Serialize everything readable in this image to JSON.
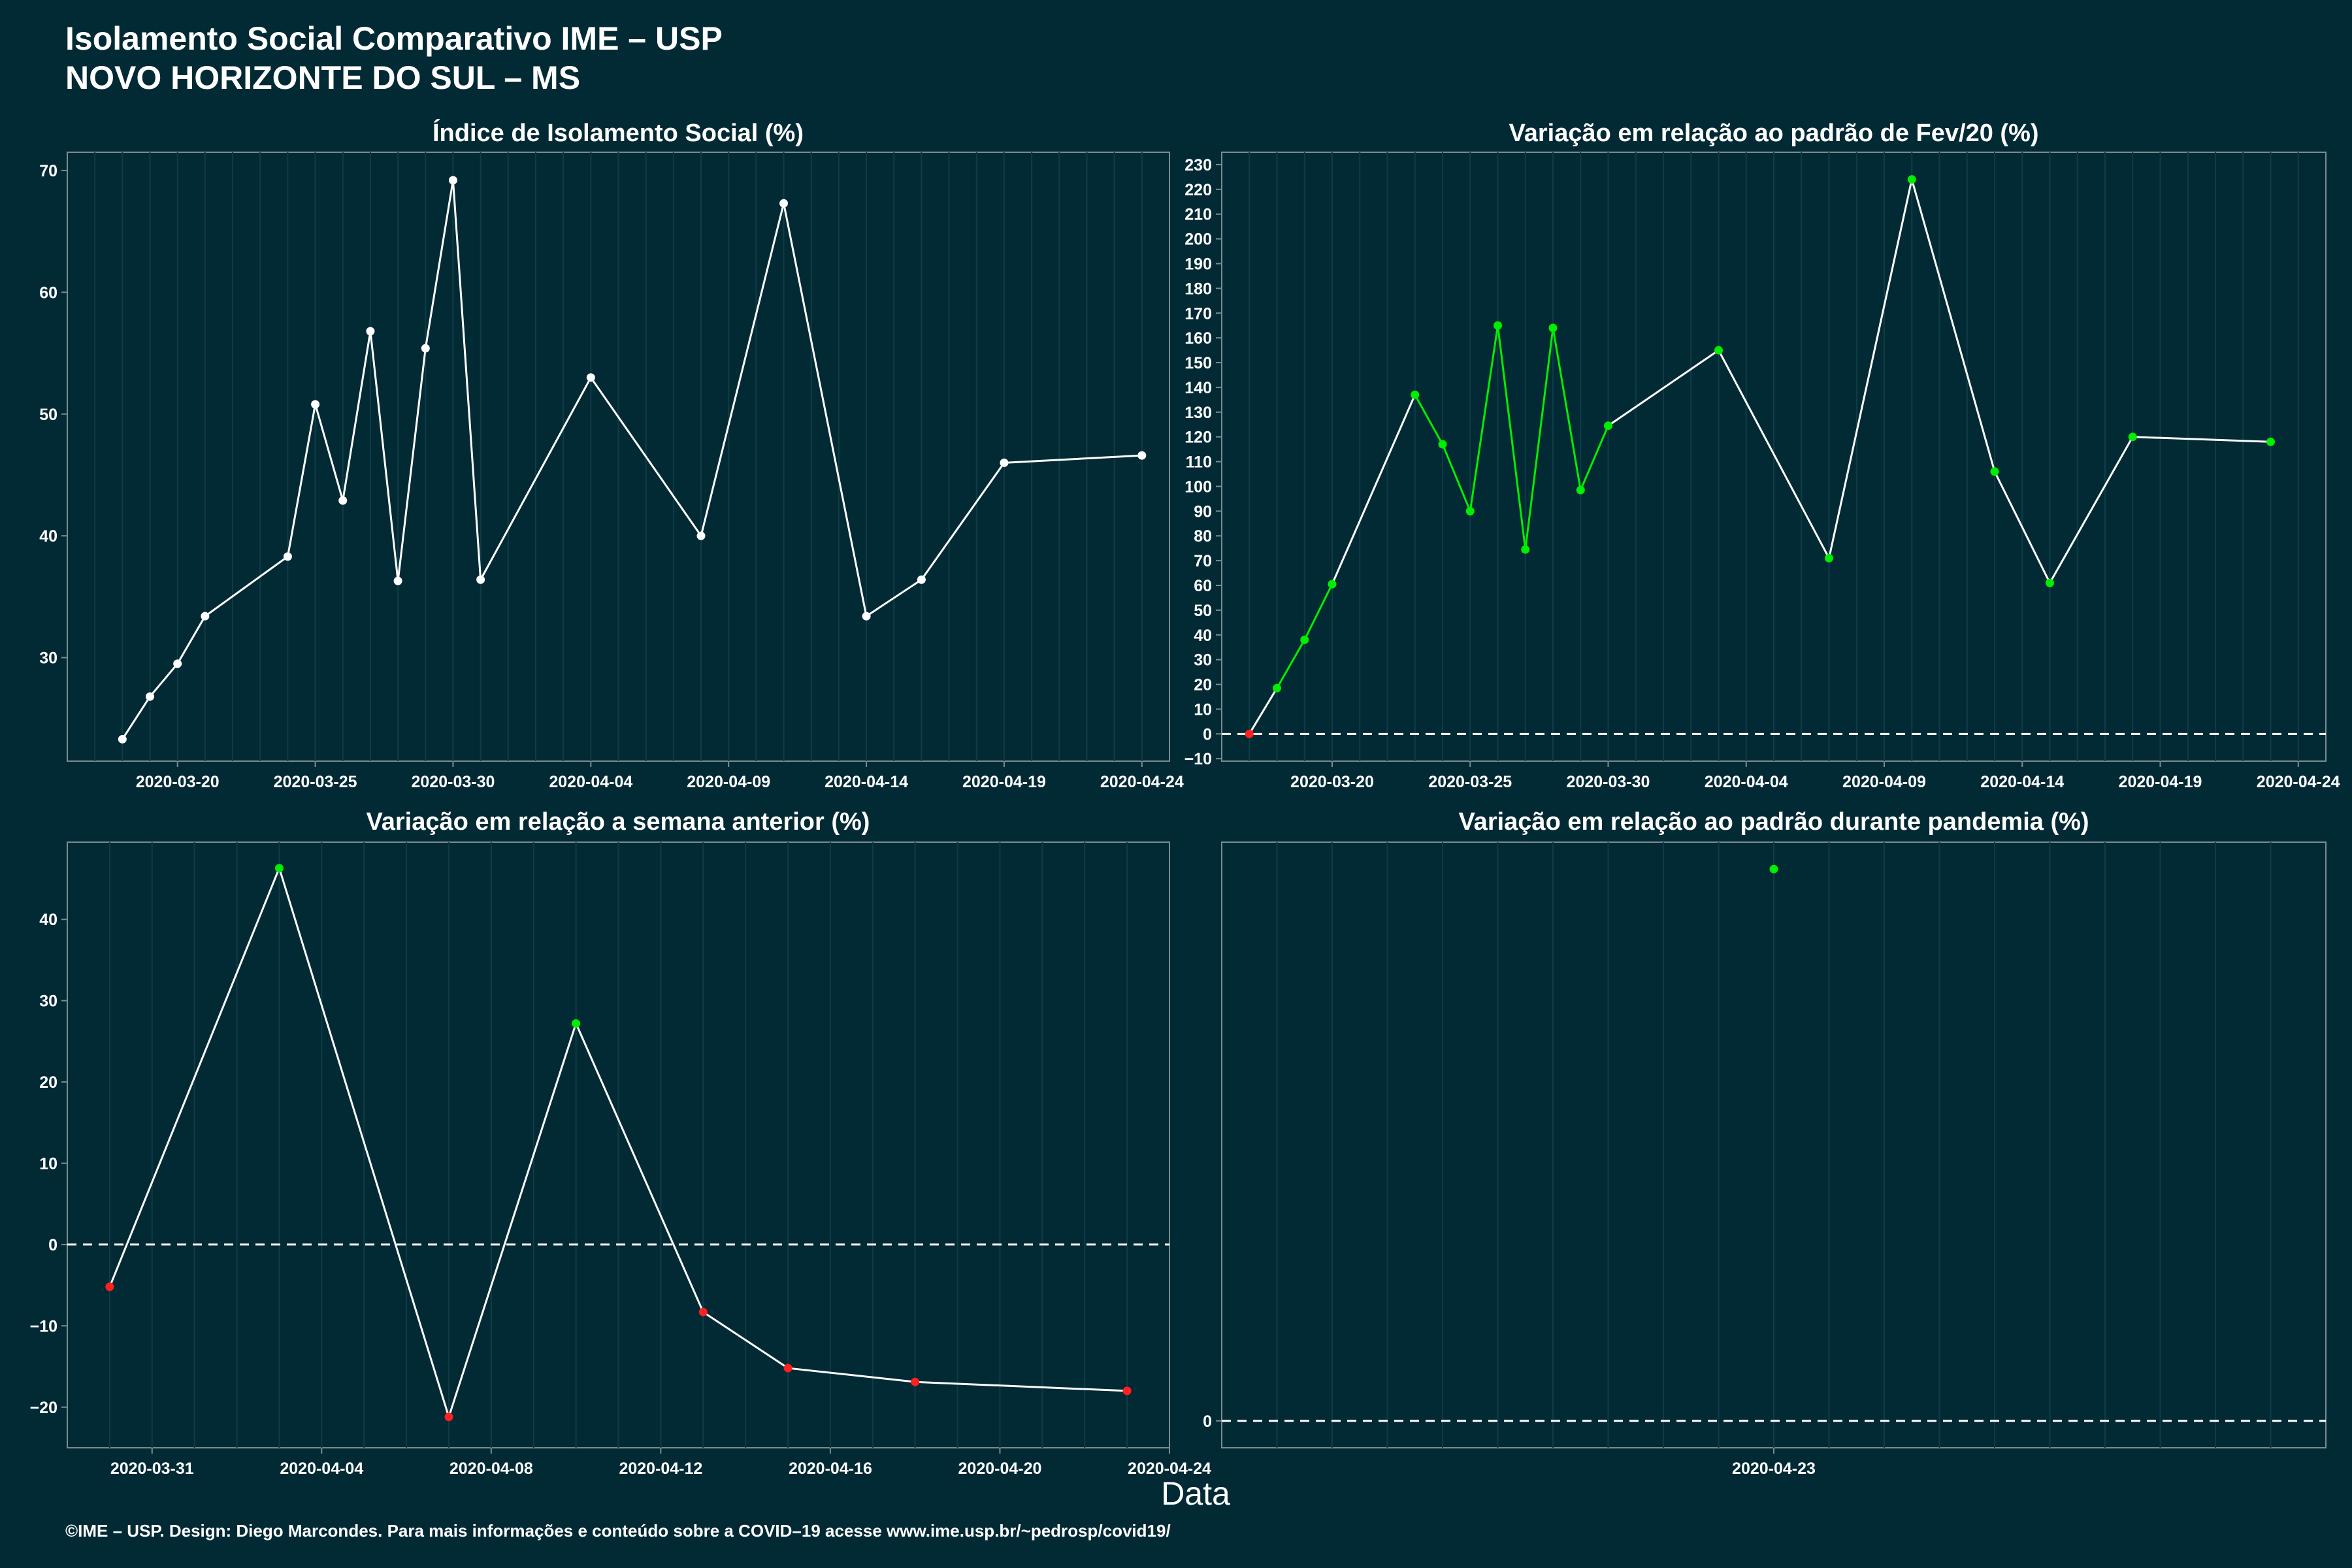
{
  "header": {
    "title_line1": "Isolamento Social Comparativo IME – USP",
    "title_line2": "NOVO HORIZONTE DO SUL – MS"
  },
  "xlabel": "Data",
  "caption": "©IME – USP. Design: Diego Marcondes. Para mais informações e conteúdo sobre a COVID–19 acesse www.ime.usp.br/~pedrosp/covid19/",
  "colors": {
    "background": "#022a35",
    "line": "#ffffff",
    "positive": "#00ee00",
    "negative": "#ff2020",
    "frame": "#7a8c90"
  },
  "chart_data": [
    {
      "id": "p1",
      "type": "line",
      "title": "Índice de Isolamento Social (%)",
      "x_start": "2020-03-16",
      "x_end": "2020-04-25",
      "xticks": [
        "2020-03-20",
        "2020-03-25",
        "2020-03-30",
        "2020-04-04",
        "2020-04-09",
        "2020-04-14",
        "2020-04-19",
        "2020-04-24"
      ],
      "ylim": [
        21.5,
        71.5
      ],
      "yticks": [
        30,
        40,
        50,
        60,
        70
      ],
      "zero_line": false,
      "colored_points": false,
      "points": [
        [
          "2020-03-18",
          23.3
        ],
        [
          "2020-03-19",
          26.8
        ],
        [
          "2020-03-20",
          29.5
        ],
        [
          "2020-03-21",
          33.4
        ],
        [
          "2020-03-24",
          38.3
        ],
        [
          "2020-03-25",
          50.8
        ],
        [
          "2020-03-26",
          42.9
        ],
        [
          "2020-03-27",
          56.8
        ],
        [
          "2020-03-28",
          36.3
        ],
        [
          "2020-03-29",
          55.4
        ],
        [
          "2020-03-30",
          69.2
        ],
        [
          "2020-03-31",
          36.4
        ],
        [
          "2020-04-04",
          53.0
        ],
        [
          "2020-04-08",
          40.0
        ],
        [
          "2020-04-11",
          67.3
        ],
        [
          "2020-04-14",
          33.4
        ],
        [
          "2020-04-16",
          36.4
        ],
        [
          "2020-04-19",
          46.0
        ],
        [
          "2020-04-24",
          46.6
        ]
      ]
    },
    {
      "id": "p2",
      "type": "line",
      "title": "Variação em relação ao padrão de Fev/20 (%)",
      "x_start": "2020-03-16",
      "x_end": "2020-04-25",
      "xticks": [
        "2020-03-20",
        "2020-03-25",
        "2020-03-30",
        "2020-04-04",
        "2020-04-09",
        "2020-04-14",
        "2020-04-19",
        "2020-04-24"
      ],
      "ylim": [
        -11,
        235
      ],
      "yticks": [
        -10,
        0,
        10,
        20,
        30,
        40,
        50,
        60,
        70,
        80,
        90,
        100,
        110,
        120,
        130,
        140,
        150,
        160,
        170,
        180,
        190,
        200,
        210,
        220,
        230
      ],
      "zero_line": true,
      "colored_points": true,
      "points": [
        [
          "2020-03-17",
          0
        ],
        [
          "2020-03-18",
          18.5
        ],
        [
          "2020-03-19",
          38.0
        ],
        [
          "2020-03-20",
          60.5
        ],
        [
          "2020-03-23",
          137.0
        ],
        [
          "2020-03-24",
          117.0
        ],
        [
          "2020-03-25",
          90.0
        ],
        [
          "2020-03-26",
          165.0
        ],
        [
          "2020-03-27",
          74.5
        ],
        [
          "2020-03-28",
          164.0
        ],
        [
          "2020-03-29",
          98.5
        ],
        [
          "2020-03-30",
          124.5
        ],
        [
          "2020-04-03",
          155.0
        ],
        [
          "2020-04-07",
          71.0
        ],
        [
          "2020-04-10",
          224.0
        ],
        [
          "2020-04-13",
          106.0
        ],
        [
          "2020-04-15",
          61.0
        ],
        [
          "2020-04-18",
          120.0
        ],
        [
          "2020-04-23",
          118.0
        ]
      ]
    },
    {
      "id": "p3",
      "type": "line",
      "title": "Variação em relação a semana anterior (%)",
      "x_start": "2020-03-29",
      "x_end": "2020-04-24",
      "xticks": [
        "2020-03-31",
        "2020-04-04",
        "2020-04-08",
        "2020-04-12",
        "2020-04-16",
        "2020-04-20",
        "2020-04-24"
      ],
      "ylim": [
        -25,
        49.5
      ],
      "yticks": [
        -20,
        -10,
        0,
        10,
        20,
        30,
        40
      ],
      "zero_line": true,
      "colored_points": true,
      "points": [
        [
          "2020-03-30",
          -5.2
        ],
        [
          "2020-04-03",
          46.3
        ],
        [
          "2020-04-07",
          -21.2
        ],
        [
          "2020-04-10",
          27.2
        ],
        [
          "2020-04-13",
          -8.3
        ],
        [
          "2020-04-15",
          -15.2
        ],
        [
          "2020-04-18",
          -16.9
        ],
        [
          "2020-04-23",
          -18.0
        ]
      ]
    },
    {
      "id": "p4",
      "type": "scatter",
      "title": "Variação em relação ao padrão durante pandemia (%)",
      "x_start": "2020-04-13",
      "x_end": "2020-05-03",
      "xticks": [
        "2020-04-23"
      ],
      "ylim": [
        -2,
        43
      ],
      "yticks": [
        0
      ],
      "zero_line": true,
      "colored_points": true,
      "points": [
        [
          "2020-04-23",
          41
        ]
      ]
    }
  ]
}
